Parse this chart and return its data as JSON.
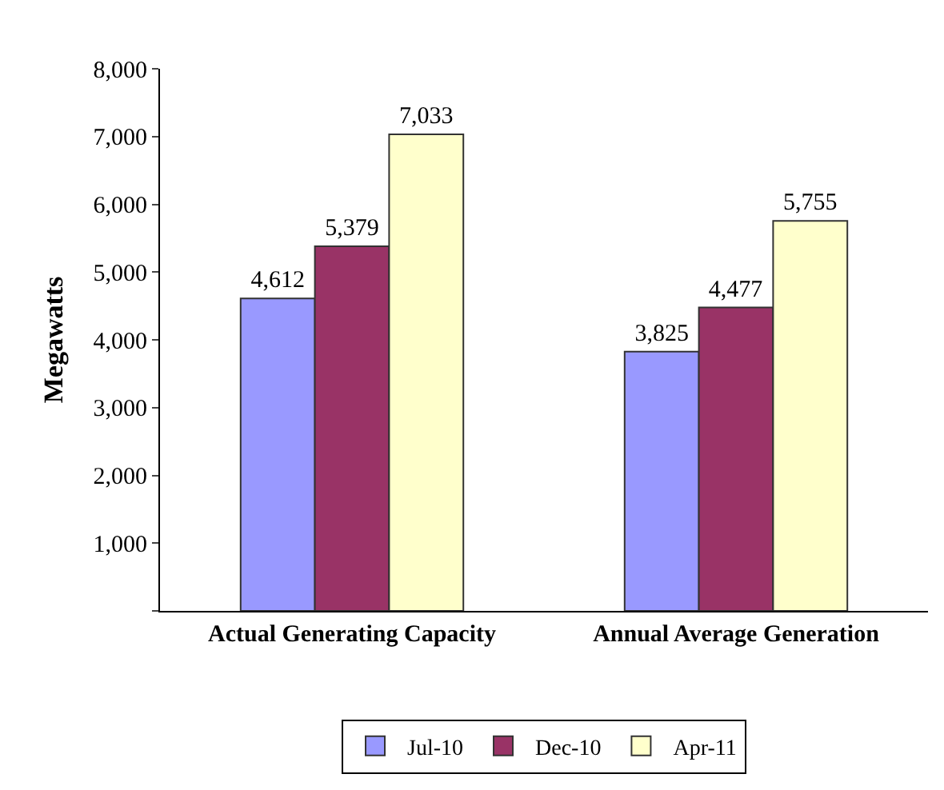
{
  "chart_data": {
    "type": "bar",
    "ylabel": "Megawatts",
    "categories": [
      "Actual Generating Capacity",
      "Annual Average Generation"
    ],
    "series": [
      {
        "name": "Jul-10",
        "color": "#9999ff",
        "values": [
          4612,
          3825
        ],
        "value_labels": [
          "4,612",
          "3,825"
        ]
      },
      {
        "name": "Dec-10",
        "color": "#993366",
        "values": [
          5379,
          4477
        ],
        "value_labels": [
          "5,379",
          "4,477"
        ]
      },
      {
        "name": "Apr-11",
        "color": "#ffffcc",
        "values": [
          7033,
          5755
        ],
        "value_labels": [
          "7,033",
          "5,755"
        ]
      }
    ],
    "ylim": [
      0,
      8000
    ],
    "yticks": [
      {
        "value": 0,
        "label": null
      },
      {
        "value": 1000,
        "label": "1,000"
      },
      {
        "value": 2000,
        "label": "2,000"
      },
      {
        "value": 3000,
        "label": "3,000"
      },
      {
        "value": 4000,
        "label": "4,000"
      },
      {
        "value": 5000,
        "label": "5,000"
      },
      {
        "value": 6000,
        "label": "6,000"
      },
      {
        "value": 7000,
        "label": "7,000"
      },
      {
        "value": 8000,
        "label": "8,000"
      }
    ],
    "grid": false,
    "legend": "bottom"
  }
}
